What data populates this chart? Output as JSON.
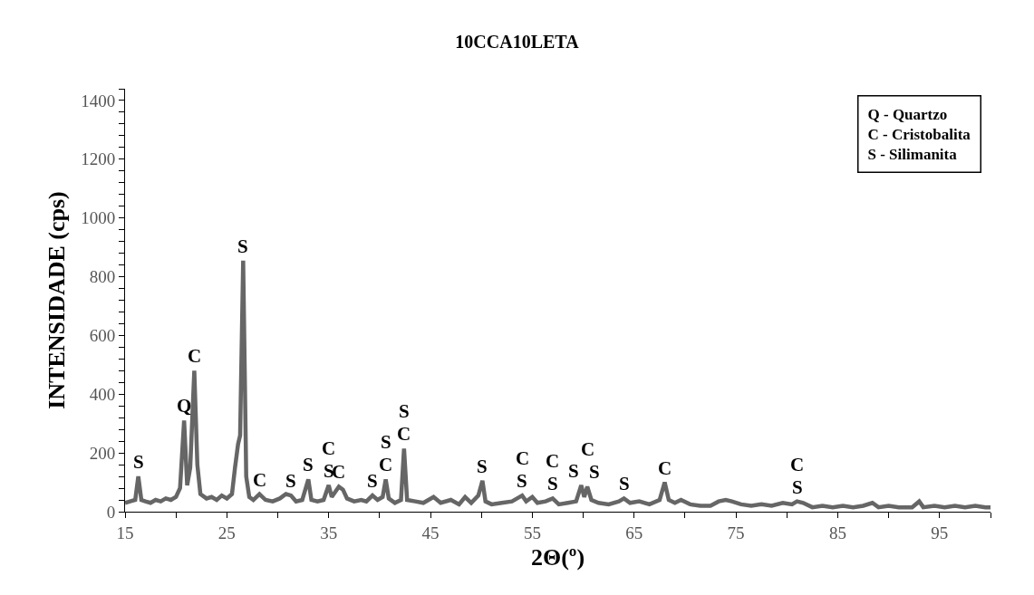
{
  "chart_data": {
    "type": "line",
    "title": "10CCA10LETA",
    "xlabel": "2Θ(º)",
    "ylabel": "INTENSIDADE (cps)",
    "x": [
      15,
      15.5,
      16,
      16.3,
      16.6,
      17,
      17.5,
      18,
      18.5,
      19,
      19.5,
      20,
      20.4,
      20.8,
      21.1,
      21.4,
      21.8,
      22.1,
      22.4,
      23,
      23.5,
      24,
      24.5,
      25,
      25.5,
      25.8,
      26.1,
      26.3,
      26.6,
      26.9,
      27.2,
      27.6,
      28.2,
      28.8,
      29.5,
      30.2,
      30.8,
      31.3,
      31.8,
      32.4,
      33.0,
      33.3,
      33.9,
      34.5,
      35.0,
      35.3,
      35.7,
      36.0,
      36.4,
      36.8,
      37.5,
      38.2,
      38.7,
      39.3,
      39.8,
      40.3,
      40.6,
      40.9,
      41.5,
      42.1,
      42.4,
      42.7,
      43.5,
      44.3,
      45.3,
      46,
      47,
      47.8,
      48.4,
      49,
      49.7,
      50.1,
      50.4,
      51,
      52,
      53,
      54,
      54.4,
      55,
      55.5,
      56.3,
      57,
      57.6,
      58.5,
      59.3,
      59.8,
      60.1,
      60.4,
      60.8,
      61.5,
      62.5,
      63.5,
      64,
      64.6,
      65.5,
      66.5,
      67.5,
      68.0,
      68.4,
      69,
      69.6,
      70.5,
      71.5,
      72.5,
      73.3,
      74,
      74.6,
      75.5,
      76.5,
      77.5,
      78.5,
      79.6,
      80.5,
      81,
      81.6,
      82.5,
      83.5,
      84.5,
      85.5,
      86.5,
      87.5,
      88.4,
      89,
      90,
      91,
      92.3,
      93,
      93.4,
      94.5,
      95.5,
      96.5,
      97.5,
      98.5,
      99.5,
      100
    ],
    "series": [
      {
        "color": "#666666",
        "values": [
          30,
          35,
          40,
          120,
          40,
          35,
          30,
          40,
          35,
          45,
          40,
          50,
          80,
          310,
          90,
          150,
          480,
          160,
          60,
          45,
          50,
          40,
          55,
          45,
          60,
          150,
          230,
          260,
          855,
          120,
          50,
          40,
          60,
          40,
          35,
          45,
          60,
          55,
          35,
          40,
          110,
          40,
          35,
          40,
          90,
          50,
          70,
          85,
          75,
          45,
          35,
          40,
          35,
          55,
          40,
          50,
          110,
          45,
          30,
          40,
          215,
          40,
          35,
          30,
          50,
          30,
          40,
          25,
          50,
          30,
          55,
          105,
          35,
          25,
          30,
          35,
          55,
          35,
          50,
          30,
          35,
          45,
          25,
          30,
          35,
          90,
          50,
          85,
          40,
          30,
          25,
          35,
          45,
          30,
          35,
          25,
          40,
          100,
          40,
          30,
          40,
          25,
          20,
          20,
          35,
          40,
          35,
          25,
          20,
          25,
          20,
          30,
          25,
          35,
          30,
          15,
          20,
          15,
          20,
          15,
          20,
          30,
          15,
          20,
          15,
          15,
          35,
          15,
          20,
          15,
          20,
          15,
          20,
          15,
          15
        ]
      }
    ],
    "xlim": [
      15,
      100
    ],
    "xticks": [
      15,
      {
        "value": 20,
        "label": null
      },
      25,
      {
        "value": 30,
        "label": null
      },
      35,
      {
        "value": 40,
        "label": null
      },
      45,
      {
        "value": 50,
        "label": null
      },
      55,
      {
        "value": 60,
        "label": null
      },
      65,
      {
        "value": 70,
        "label": null
      },
      75,
      {
        "value": 80,
        "label": null
      },
      85,
      {
        "value": 90,
        "label": null
      },
      95,
      {
        "value": 100,
        "label": null
      }
    ],
    "ylim": [
      0,
      1440
    ],
    "yticks": [
      0,
      {
        "value": 40,
        "label": null
      },
      {
        "value": 80,
        "label": null
      },
      {
        "value": 120,
        "label": null
      },
      {
        "value": 160,
        "label": null
      },
      200,
      {
        "value": 240,
        "label": null
      },
      {
        "value": 280,
        "label": null
      },
      {
        "value": 320,
        "label": null
      },
      {
        "value": 360,
        "label": null
      },
      400,
      {
        "value": 440,
        "label": null
      },
      {
        "value": 480,
        "label": null
      },
      {
        "value": 520,
        "label": null
      },
      {
        "value": 560,
        "label": null
      },
      600,
      {
        "value": 640,
        "label": null
      },
      {
        "value": 680,
        "label": null
      },
      {
        "value": 720,
        "label": null
      },
      {
        "value": 760,
        "label": null
      },
      800,
      {
        "value": 840,
        "label": null
      },
      {
        "value": 880,
        "label": null
      },
      {
        "value": 920,
        "label": null
      },
      {
        "value": 960,
        "label": null
      },
      1000,
      {
        "value": 1040,
        "label": null
      },
      {
        "value": 1080,
        "label": null
      },
      {
        "value": 1120,
        "label": null
      },
      {
        "value": 1160,
        "label": null
      },
      1200,
      {
        "value": 1240,
        "label": null
      },
      {
        "value": 1280,
        "label": null
      },
      {
        "value": 1320,
        "label": null
      },
      {
        "value": 1360,
        "label": null
      },
      1400,
      {
        "value": 1440,
        "label": null
      }
    ],
    "grid": false,
    "marker": "none",
    "line_style": "solid",
    "annotations": [
      "Q - Quartzo",
      "C - Cristobalita",
      "S - Silimanita",
      {
        "text": "S",
        "x": 16.3,
        "y": 120
      },
      {
        "text": "Q",
        "x": 20.8,
        "y": 310
      },
      {
        "text": "C",
        "x": 21.8,
        "y": 480
      },
      {
        "text": "S",
        "x": 26.6,
        "y": 855
      },
      {
        "text": "C",
        "x": 28.2,
        "y": 60
      },
      {
        "text": "S",
        "x": 31.3,
        "y": 55
      },
      {
        "text": "S",
        "x": 33.0,
        "y": 110
      },
      {
        "text": "S",
        "x": 35.0,
        "y": 90
      },
      {
        "text": "C",
        "x": 36.0,
        "y": 85
      },
      {
        "text": "C",
        "x": 35.0,
        "y": 90
      },
      {
        "text": "S",
        "x": 39.3,
        "y": 55
      },
      {
        "text": "C",
        "x": 40.6,
        "y": 110
      },
      {
        "text": "S",
        "x": 40.6,
        "y": 110
      },
      {
        "text": "C",
        "x": 42.4,
        "y": 215
      },
      {
        "text": "S",
        "x": 42.4,
        "y": 215
      },
      {
        "text": "S",
        "x": 50.1,
        "y": 105
      },
      {
        "text": "S",
        "x": 54.0,
        "y": 55
      },
      {
        "text": "C",
        "x": 54.0,
        "y": 55
      },
      {
        "text": "S",
        "x": 57.0,
        "y": 45
      },
      {
        "text": "C",
        "x": 57.0,
        "y": 45
      },
      {
        "text": "S",
        "x": 59.8,
        "y": 90
      },
      {
        "text": "S",
        "x": 60.4,
        "y": 85
      },
      {
        "text": "C",
        "x": 60.4,
        "y": 85
      },
      {
        "text": "S",
        "x": 64.0,
        "y": 45
      },
      {
        "text": "C",
        "x": 68.0,
        "y": 100
      },
      {
        "text": "S",
        "x": 81.0,
        "y": 35
      },
      {
        "text": "C",
        "x": 81.0,
        "y": 35
      }
    ]
  }
}
